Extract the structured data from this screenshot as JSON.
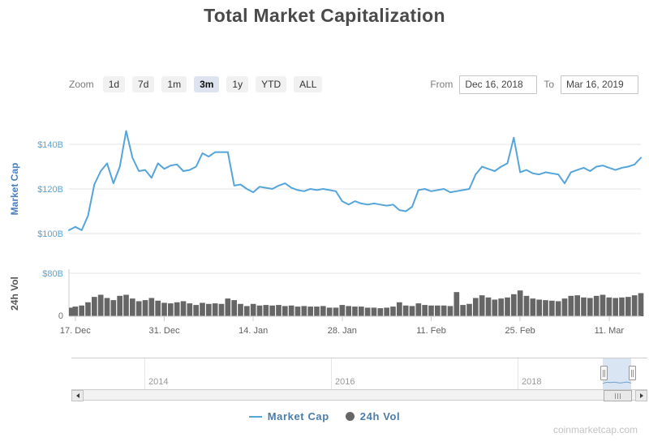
{
  "title": "Total Market Capitalization",
  "watermark": "coinmarketcap.com",
  "controls": {
    "zoom_label": "Zoom",
    "zoom_buttons": [
      "1d",
      "7d",
      "1m",
      "3m",
      "1y",
      "YTD",
      "ALL"
    ],
    "zoom_selected": "3m",
    "from_label": "From",
    "from_value": "Dec 16, 2018",
    "to_label": "To",
    "to_value": "Mar 16, 2019"
  },
  "legend": [
    {
      "label": "Market Cap",
      "swatch": "line",
      "color": "#55a5da"
    },
    {
      "label": "24h Vol",
      "swatch": "circle",
      "color": "#666666"
    }
  ],
  "navigator": {
    "year_labels": [
      "2014",
      "2016",
      "2018"
    ]
  },
  "colors": {
    "market_cap_line": "#55a5da",
    "volume_fill": "#666666",
    "axis_label_blue": "#55a5da",
    "market_cap_axis_title": "#4a7fbe",
    "vol_axis_title": "#555555",
    "vol_zero_label": "#707070",
    "x_label": "#606060",
    "gridline": "#e6e6e6",
    "axis_line": "#cccccc",
    "selected_zoom_bg": "#dde4f0"
  },
  "chart_data": [
    {
      "type": "line",
      "name": "Market Cap",
      "ylabel": "Market Cap",
      "unit": "USD billions",
      "start_date": "2018-12-16",
      "end_date": "2019-03-16",
      "interval": "daily",
      "ylim": [
        95,
        150
      ],
      "grid": true,
      "ytick_labels": [
        "$100B",
        "$120B",
        "$140B"
      ],
      "ytick_values": [
        100,
        120,
        140
      ],
      "x_tick_labels": [
        "17. Dec",
        "31. Dec",
        "14. Jan",
        "28. Jan",
        "11. Feb",
        "25. Feb",
        "11. Mar"
      ],
      "x_tick_day_offsets": [
        1,
        15,
        29,
        43,
        57,
        71,
        85
      ],
      "values": [
        101.5,
        103.0,
        101.5,
        108.0,
        122.0,
        128.0,
        131.5,
        122.5,
        130.0,
        146.0,
        134.0,
        128.0,
        128.5,
        125.0,
        131.5,
        129.0,
        130.5,
        131.0,
        128.0,
        128.5,
        130.0,
        136.0,
        134.5,
        136.5,
        136.5,
        136.5,
        121.5,
        122.0,
        120.0,
        118.5,
        121.0,
        120.5,
        120.0,
        121.5,
        122.5,
        120.5,
        119.5,
        119.0,
        120.0,
        119.5,
        120.0,
        119.5,
        119.0,
        114.5,
        113.0,
        114.5,
        113.5,
        113.0,
        113.5,
        113.0,
        112.5,
        113.0,
        110.5,
        110.0,
        112.0,
        119.5,
        120.0,
        119.0,
        119.5,
        120.0,
        118.5,
        119.0,
        119.5,
        120.0,
        126.5,
        130.0,
        129.0,
        128.0,
        130.0,
        131.5,
        143.0,
        127.5,
        128.5,
        127.0,
        126.5,
        127.5,
        127.0,
        126.5,
        122.5,
        127.5,
        128.5,
        129.5,
        128.0,
        130.0,
        130.5,
        129.5,
        128.5,
        129.5,
        130.0,
        131.0,
        134.0
      ]
    },
    {
      "type": "area",
      "name": "24h Vol",
      "ylabel": "24h Vol",
      "unit": "USD billions",
      "start_date": "2018-12-16",
      "end_date": "2019-03-16",
      "interval": "daily",
      "ylim": [
        0,
        80
      ],
      "ytick_labels": [
        "$80B",
        "0"
      ],
      "ytick_values": [
        80,
        0
      ],
      "values": [
        16,
        18,
        20,
        26,
        36,
        40,
        34,
        30,
        38,
        40,
        33,
        28,
        30,
        34,
        29,
        25,
        24,
        26,
        28,
        24,
        21,
        25,
        23,
        24,
        23,
        33,
        30,
        23,
        19,
        23,
        20,
        21,
        20,
        21,
        19,
        20,
        18,
        19,
        18,
        18,
        19,
        16,
        16,
        21,
        19,
        18,
        18,
        16,
        16,
        15,
        16,
        18,
        26,
        20,
        19,
        24,
        21,
        20,
        20,
        20,
        19,
        45,
        21,
        23,
        34,
        39,
        35,
        31,
        33,
        35,
        41,
        48,
        38,
        33,
        31,
        30,
        29,
        28,
        33,
        38,
        39,
        35,
        34,
        38,
        40,
        35,
        34,
        35,
        36,
        39,
        43
      ]
    }
  ]
}
